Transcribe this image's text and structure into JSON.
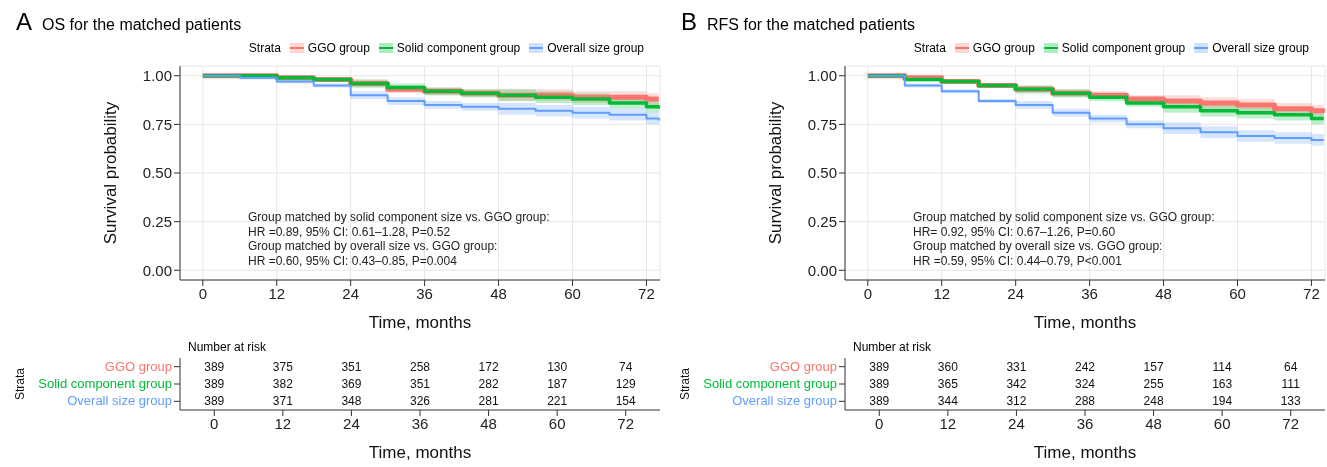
{
  "chart_data": [
    {
      "type": "step",
      "title": "OS for the matched patients",
      "xlabel": "Time, months",
      "ylabel": "Survival probability",
      "legend_title": "Strata",
      "legend": "top",
      "grid": true,
      "annotations": [
        "A",
        "Group matched by solid component size vs. GGO group:",
        "HR =0.89, 95% CI: 0.61–1.28, P=0.52",
        "Group matched by overall size vs. GGO group:",
        "HR =0.60, 95% CI: 0.43–0.85, P=0.004"
      ],
      "x": [
        0,
        6,
        12,
        18,
        24,
        30,
        36,
        42,
        48,
        54,
        60,
        66,
        72,
        74
      ],
      "xlim": [
        -3.7,
        74.2
      ],
      "xticks": [
        0,
        12,
        24,
        36,
        48,
        60,
        72
      ],
      "ylim": [
        -0.05,
        1.05
      ],
      "yticks": [
        {
          "value": 0,
          "label": "0.00"
        },
        {
          "value": 0.25,
          "label": "0.25"
        },
        {
          "value": 0.5,
          "label": "0.50"
        },
        {
          "value": 0.75,
          "label": "0.75"
        },
        {
          "value": 1,
          "label": "1.00"
        }
      ],
      "series": [
        {
          "name": "GGO group",
          "color": "#f8766d",
          "values": [
            1,
            1,
            0.99,
            0.98,
            0.96,
            0.93,
            0.92,
            0.91,
            0.9,
            0.9,
            0.89,
            0.89,
            0.88,
            0.88
          ],
          "lower": [
            1,
            0.99,
            0.98,
            0.97,
            0.94,
            0.91,
            0.9,
            0.89,
            0.87,
            0.87,
            0.86,
            0.86,
            0.85,
            0.85
          ],
          "upper": [
            1,
            1,
            1,
            0.99,
            0.98,
            0.95,
            0.94,
            0.93,
            0.93,
            0.93,
            0.92,
            0.92,
            0.91,
            0.91
          ]
        },
        {
          "name": "Solid component group",
          "color": "#00ba38",
          "values": [
            1,
            1,
            0.99,
            0.98,
            0.96,
            0.94,
            0.92,
            0.91,
            0.9,
            0.89,
            0.88,
            0.86,
            0.84,
            0.83
          ],
          "lower": [
            1,
            0.99,
            0.98,
            0.97,
            0.94,
            0.92,
            0.9,
            0.89,
            0.87,
            0.86,
            0.85,
            0.83,
            0.81,
            0.8
          ],
          "upper": [
            1,
            1,
            1,
            0.99,
            0.98,
            0.96,
            0.94,
            0.93,
            0.93,
            0.92,
            0.91,
            0.89,
            0.87,
            0.86
          ]
        },
        {
          "name": "Overall size group",
          "color": "#619cff",
          "values": [
            1,
            0.99,
            0.97,
            0.95,
            0.9,
            0.87,
            0.85,
            0.84,
            0.83,
            0.82,
            0.81,
            0.8,
            0.78,
            0.77
          ],
          "lower": [
            1,
            0.98,
            0.96,
            0.94,
            0.88,
            0.85,
            0.83,
            0.82,
            0.8,
            0.79,
            0.78,
            0.77,
            0.75,
            0.74
          ],
          "upper": [
            1,
            1,
            0.98,
            0.96,
            0.92,
            0.89,
            0.87,
            0.86,
            0.86,
            0.85,
            0.84,
            0.83,
            0.81,
            0.8
          ]
        }
      ]
    },
    {
      "type": "heatmap",
      "title": "Number at risk",
      "xlabel": "Time, months",
      "ylabel": "Strata",
      "data_labels": true,
      "categories": [
        "0",
        "12",
        "24",
        "36",
        "48",
        "60",
        "72"
      ],
      "y_categories": [
        "GGO group",
        "Solid component group",
        "Overall size group"
      ],
      "colors": [
        "#f8766d",
        "#00ba38",
        "#619cff"
      ],
      "cells": [
        [
          389,
          375,
          351,
          258,
          172,
          130,
          74
        ],
        [
          389,
          382,
          369,
          351,
          282,
          187,
          129
        ],
        [
          389,
          371,
          348,
          326,
          281,
          221,
          154
        ]
      ]
    },
    {
      "type": "step",
      "title": "RFS for the matched patients",
      "xlabel": "Time, months",
      "ylabel": "Survival probability",
      "legend_title": "Strata",
      "legend": "top",
      "grid": true,
      "annotations": [
        "B",
        "Group matched by solid component size vs. GGO group:",
        "HR= 0.92, 95% CI: 0.67–1.26, P=0.60",
        "Group matched by overall size vs. GGO group:",
        "HR =0.59, 95% CI: 0.44–0.79, P<0.001"
      ],
      "x": [
        0,
        6,
        12,
        18,
        24,
        30,
        36,
        42,
        48,
        54,
        60,
        66,
        72,
        74
      ],
      "xlim": [
        -3.7,
        74.2
      ],
      "xticks": [
        0,
        12,
        24,
        36,
        48,
        60,
        72
      ],
      "ylim": [
        -0.05,
        1.05
      ],
      "yticks": [
        {
          "value": 0,
          "label": "0.00"
        },
        {
          "value": 0.25,
          "label": "0.25"
        },
        {
          "value": 0.5,
          "label": "0.50"
        },
        {
          "value": 0.75,
          "label": "0.75"
        },
        {
          "value": 1,
          "label": "1.00"
        }
      ],
      "series": [
        {
          "name": "GGO group",
          "color": "#f8766d",
          "values": [
            1,
            0.99,
            0.97,
            0.95,
            0.93,
            0.91,
            0.9,
            0.88,
            0.87,
            0.86,
            0.85,
            0.83,
            0.82,
            0.81
          ],
          "lower": [
            1,
            0.98,
            0.96,
            0.94,
            0.91,
            0.89,
            0.88,
            0.86,
            0.84,
            0.83,
            0.82,
            0.8,
            0.79,
            0.78
          ],
          "upper": [
            1,
            1,
            0.98,
            0.96,
            0.95,
            0.93,
            0.92,
            0.9,
            0.9,
            0.89,
            0.88,
            0.86,
            0.85,
            0.84
          ]
        },
        {
          "name": "Solid component group",
          "color": "#00ba38",
          "values": [
            1,
            0.98,
            0.97,
            0.95,
            0.93,
            0.91,
            0.89,
            0.86,
            0.84,
            0.82,
            0.81,
            0.8,
            0.78,
            0.78
          ],
          "lower": [
            1,
            0.97,
            0.96,
            0.94,
            0.91,
            0.89,
            0.87,
            0.84,
            0.81,
            0.79,
            0.78,
            0.77,
            0.75,
            0.75
          ],
          "upper": [
            1,
            0.99,
            0.98,
            0.96,
            0.95,
            0.93,
            0.91,
            0.88,
            0.87,
            0.85,
            0.84,
            0.83,
            0.81,
            0.81
          ]
        },
        {
          "name": "Overall size group",
          "color": "#619cff",
          "values": [
            1,
            0.95,
            0.92,
            0.87,
            0.85,
            0.81,
            0.78,
            0.75,
            0.73,
            0.71,
            0.69,
            0.68,
            0.67,
            0.67
          ],
          "lower": [
            1,
            0.94,
            0.91,
            0.86,
            0.83,
            0.79,
            0.76,
            0.73,
            0.7,
            0.68,
            0.66,
            0.65,
            0.64,
            0.64
          ],
          "upper": [
            1,
            0.96,
            0.93,
            0.88,
            0.87,
            0.83,
            0.8,
            0.77,
            0.76,
            0.74,
            0.72,
            0.71,
            0.7,
            0.7
          ]
        }
      ]
    },
    {
      "type": "heatmap",
      "title": "Number at risk",
      "xlabel": "Time, months",
      "ylabel": "Strata",
      "data_labels": true,
      "categories": [
        "0",
        "12",
        "24",
        "36",
        "48",
        "60",
        "72"
      ],
      "y_categories": [
        "GGO group",
        "Solid component group",
        "Overall size group"
      ],
      "colors": [
        "#f8766d",
        "#00ba38",
        "#619cff"
      ],
      "cells": [
        [
          389,
          360,
          331,
          242,
          157,
          114,
          64
        ],
        [
          389,
          365,
          342,
          324,
          255,
          163,
          111
        ],
        [
          389,
          344,
          312,
          288,
          248,
          194,
          133
        ]
      ]
    }
  ]
}
